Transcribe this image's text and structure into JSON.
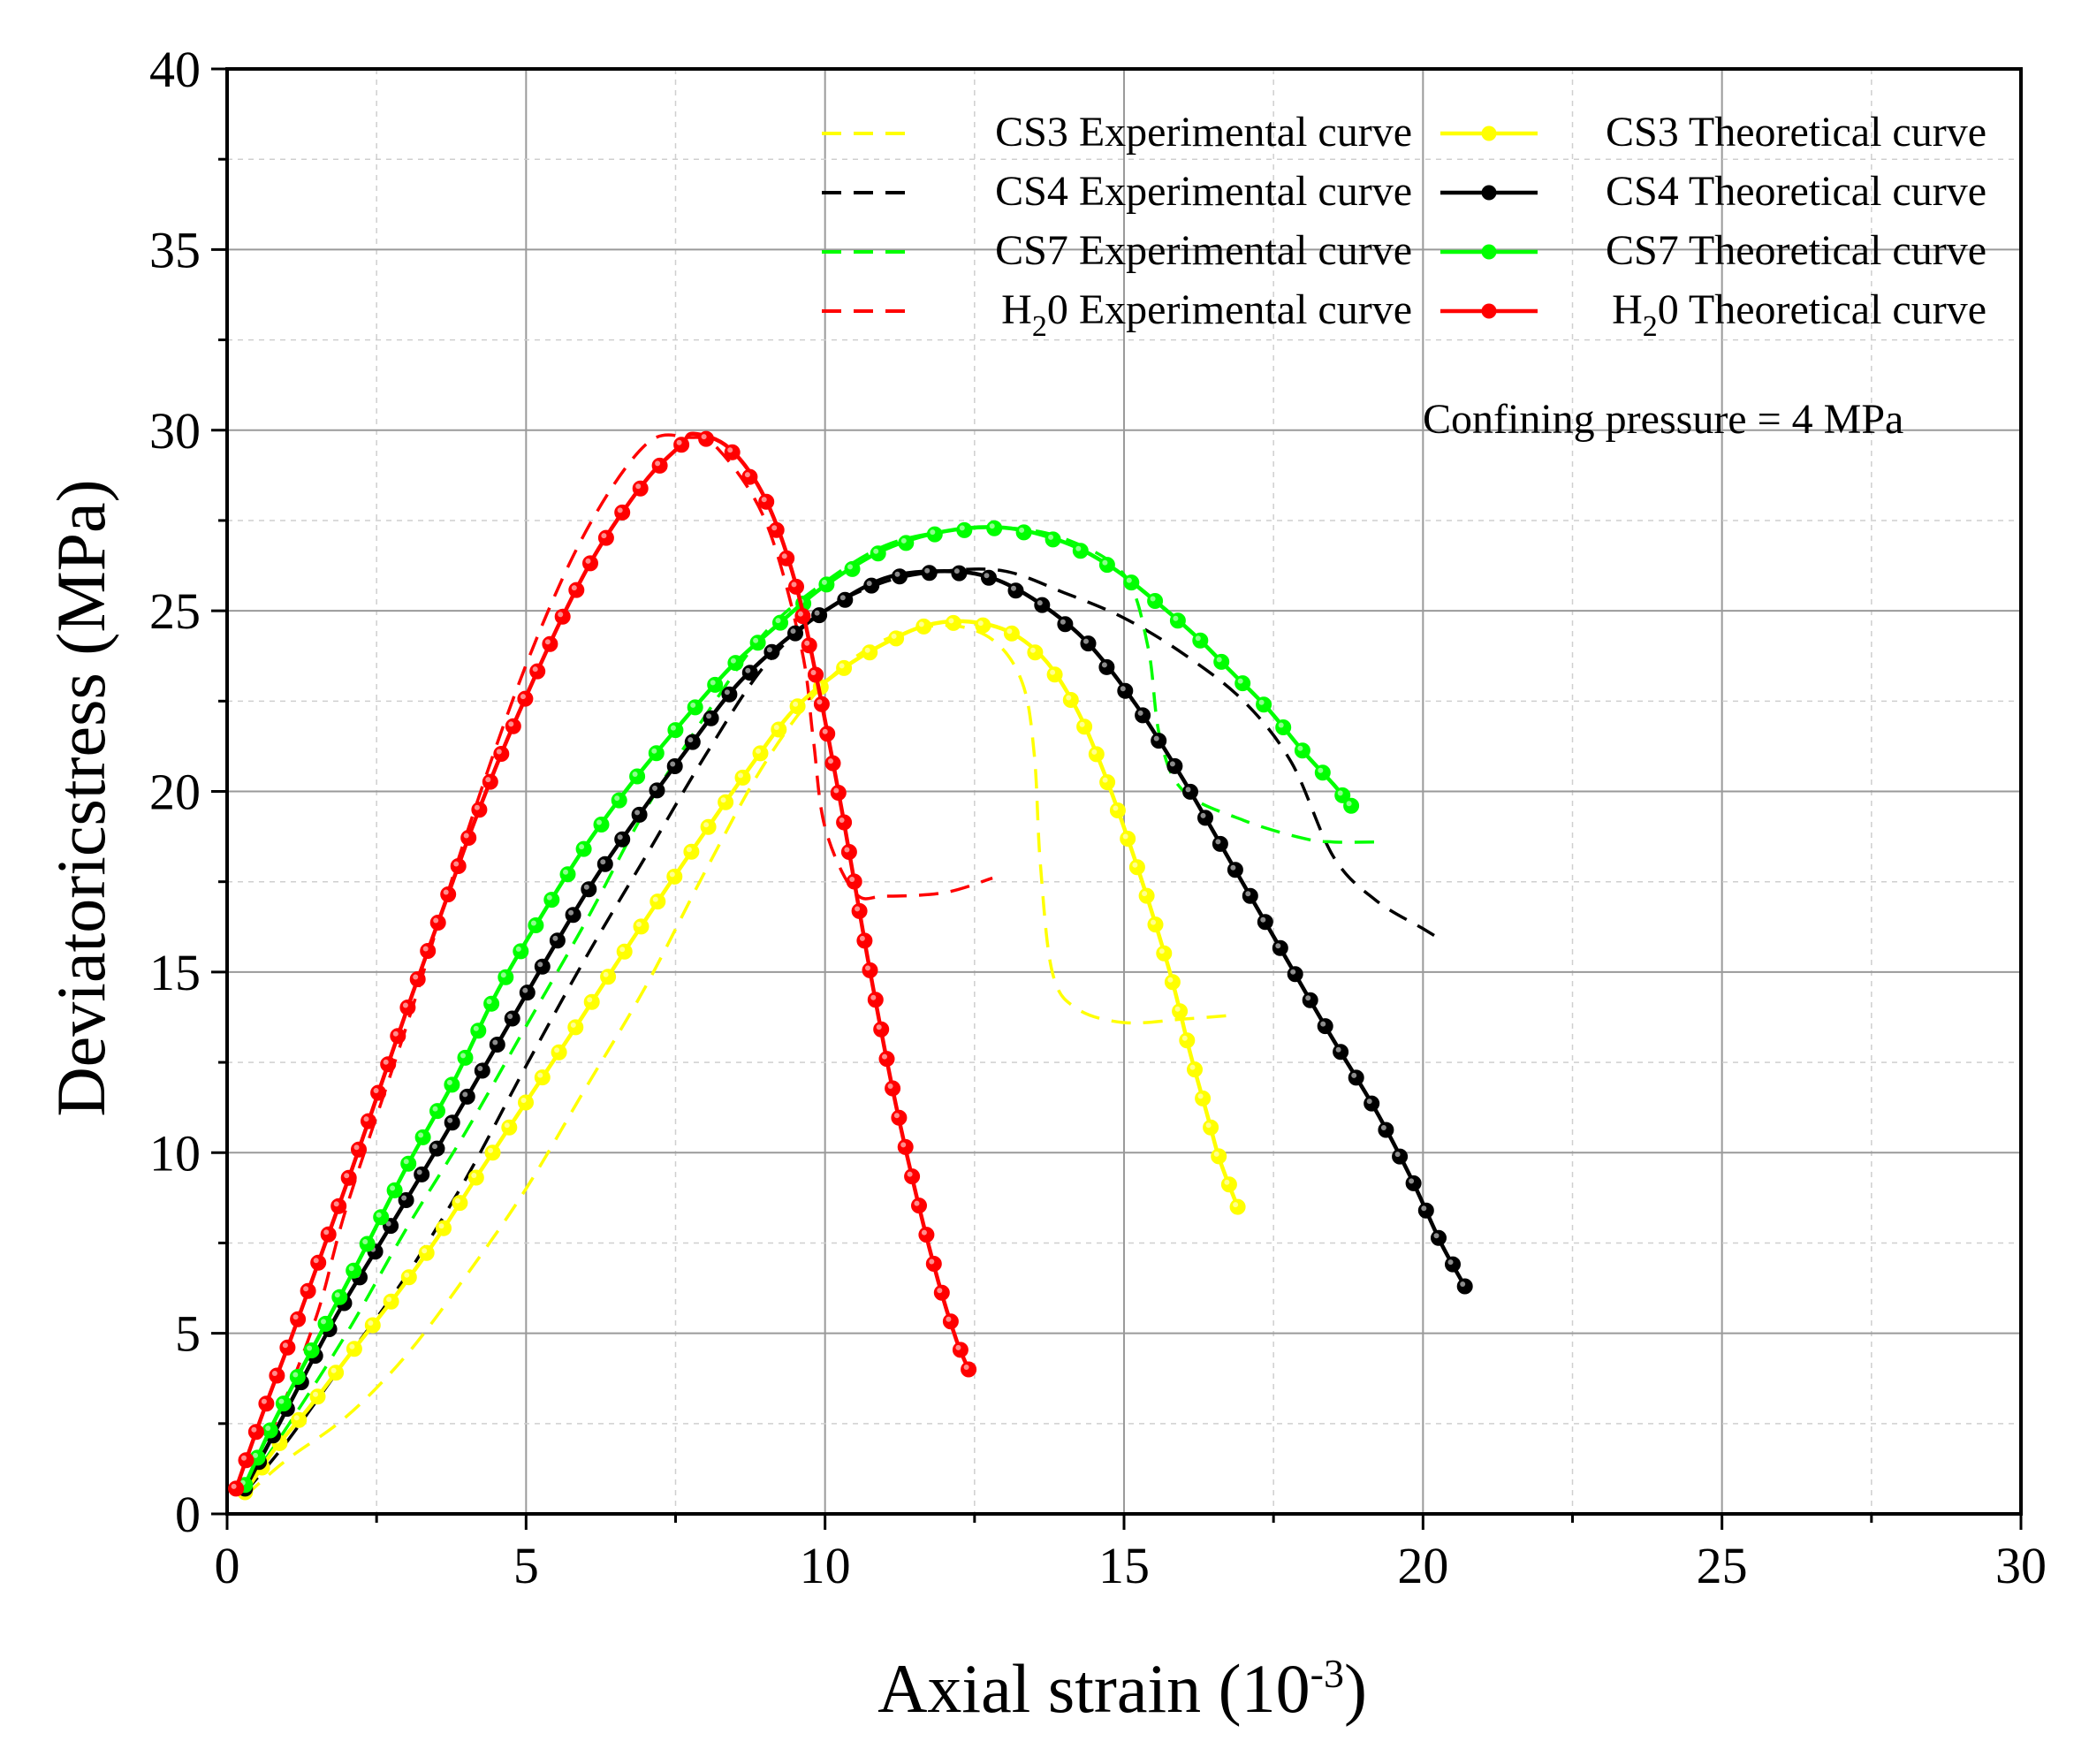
{
  "chart_data": {
    "type": "line",
    "title": "",
    "xlabel": "Axial strain (10",
    "xlabel_sup": "-3",
    "xlabel_close": ")",
    "ylabel": "Deviatoricstress (MPa)",
    "xlim": [
      0,
      30
    ],
    "ylim": [
      0,
      40
    ],
    "xticks": [
      "0",
      "5",
      "10",
      "15",
      "20",
      "25",
      "30"
    ],
    "yticks": [
      "0",
      "5",
      "10",
      "15",
      "20",
      "25",
      "30",
      "35",
      "40"
    ],
    "grid": true,
    "legend_position": "top-right",
    "annotation": "Confining pressure = 4 MPa",
    "series": [
      {
        "name": "CS3 Experimental curve",
        "label_pre": "CS3 Experimental curve",
        "label_sub": "",
        "label_post": "",
        "kind": "experimental",
        "color": "#FFFF00",
        "points": [
          [
            0.3,
            0.5
          ],
          [
            1,
            1.5
          ],
          [
            2,
            2.7
          ],
          [
            3,
            4.4
          ],
          [
            4,
            6.6
          ],
          [
            5,
            9.0
          ],
          [
            6,
            11.8
          ],
          [
            7,
            14.6
          ],
          [
            8,
            17.8
          ],
          [
            9,
            20.8
          ],
          [
            10,
            23.0
          ],
          [
            11,
            24.2
          ],
          [
            12,
            24.6
          ],
          [
            12.8,
            24.2
          ],
          [
            13.3,
            23.0
          ],
          [
            13.5,
            21.0
          ],
          [
            13.6,
            18.0
          ],
          [
            13.8,
            15.0
          ],
          [
            14.2,
            14.0
          ],
          [
            15,
            13.6
          ],
          [
            16,
            13.7
          ],
          [
            16.8,
            13.8
          ]
        ]
      },
      {
        "name": "CS4 Experimental curve",
        "label_pre": "CS4 Experimental curve",
        "label_sub": "",
        "label_post": "",
        "kind": "experimental",
        "color": "#000000",
        "points": [
          [
            0.3,
            0.6
          ],
          [
            1,
            2.0
          ],
          [
            2,
            4.3
          ],
          [
            3,
            6.6
          ],
          [
            4,
            9.3
          ],
          [
            5,
            12.4
          ],
          [
            6,
            15.4
          ],
          [
            7,
            18.2
          ],
          [
            8,
            21.0
          ],
          [
            9,
            23.5
          ],
          [
            10,
            25.0
          ],
          [
            11,
            25.8
          ],
          [
            12,
            26.1
          ],
          [
            13,
            26.1
          ],
          [
            14,
            25.5
          ],
          [
            15,
            24.8
          ],
          [
            16,
            23.8
          ],
          [
            17,
            22.5
          ],
          [
            17.8,
            20.8
          ],
          [
            18.5,
            18.2
          ],
          [
            19.2,
            17.0
          ],
          [
            20,
            16.2
          ],
          [
            20.3,
            15.9
          ]
        ]
      },
      {
        "name": "CS7 Experimental curve",
        "label_pre": "CS7 Experimental curve",
        "label_sub": "",
        "label_post": "",
        "kind": "experimental",
        "color": "#00FF00",
        "points": [
          [
            0.3,
            0.7
          ],
          [
            1,
            2.4
          ],
          [
            2,
            5.0
          ],
          [
            3,
            7.9
          ],
          [
            4,
            10.6
          ],
          [
            5,
            13.5
          ],
          [
            6,
            16.4
          ],
          [
            7,
            19.5
          ],
          [
            8,
            22.1
          ],
          [
            9,
            24.4
          ],
          [
            10,
            25.8
          ],
          [
            11,
            26.8
          ],
          [
            12,
            27.2
          ],
          [
            13,
            27.3
          ],
          [
            14,
            27.0
          ],
          [
            15,
            26.0
          ],
          [
            15.4,
            24.0
          ],
          [
            15.6,
            21.5
          ],
          [
            16,
            20.0
          ],
          [
            17,
            19.2
          ],
          [
            18,
            18.7
          ],
          [
            18.5,
            18.6
          ],
          [
            19.2,
            18.6
          ]
        ]
      },
      {
        "name": "H20 Experimental curve",
        "label_pre": "H",
        "label_sub": "2",
        "label_post": "0 Experimental curve",
        "kind": "experimental",
        "color": "#FF0000",
        "points": [
          [
            0.2,
            0.5
          ],
          [
            0.8,
            2.5
          ],
          [
            1.5,
            5.5
          ],
          [
            2,
            8.5
          ],
          [
            3,
            13.5
          ],
          [
            4,
            18.8
          ],
          [
            5,
            23.5
          ],
          [
            6,
            27.2
          ],
          [
            7,
            29.6
          ],
          [
            7.7,
            29.8
          ],
          [
            8.2,
            29.5
          ],
          [
            9,
            27.5
          ],
          [
            9.6,
            24.0
          ],
          [
            9.8,
            21.5
          ],
          [
            10,
            19.0
          ],
          [
            10.5,
            17.2
          ],
          [
            11,
            17.1
          ],
          [
            12,
            17.2
          ],
          [
            12.8,
            17.6
          ]
        ]
      },
      {
        "name": "CS3 Theoretical curve",
        "label_pre": "CS3 Theoretical curve",
        "label_sub": "",
        "label_post": "",
        "kind": "theoretical",
        "color": "#FFFF00",
        "points": [
          [
            0.3,
            0.6
          ],
          [
            0.8,
            1.8
          ],
          [
            1.4,
            3.0
          ],
          [
            2,
            4.3
          ],
          [
            2.8,
            6.0
          ],
          [
            3.5,
            7.6
          ],
          [
            4.2,
            9.4
          ],
          [
            5,
            11.4
          ],
          [
            5.8,
            13.4
          ],
          [
            6.5,
            15.2
          ],
          [
            7.3,
            17.2
          ],
          [
            8,
            18.9
          ],
          [
            8.8,
            20.8
          ],
          [
            9.5,
            22.3
          ],
          [
            10.3,
            23.4
          ],
          [
            11,
            24.1
          ],
          [
            11.7,
            24.6
          ],
          [
            12.4,
            24.7
          ],
          [
            13.1,
            24.4
          ],
          [
            13.7,
            23.6
          ],
          [
            14.2,
            22.3
          ],
          [
            14.6,
            20.8
          ],
          [
            15,
            19.0
          ],
          [
            15.4,
            17.0
          ],
          [
            15.8,
            14.8
          ],
          [
            16.1,
            12.8
          ],
          [
            16.4,
            11.0
          ],
          [
            16.6,
            9.8
          ],
          [
            16.9,
            8.5
          ]
        ]
      },
      {
        "name": "CS4 Theoretical curve",
        "label_pre": "CS4 Theoretical curve",
        "label_sub": "",
        "label_post": "",
        "kind": "theoretical",
        "color": "#000000",
        "points": [
          [
            0.3,
            0.7
          ],
          [
            1,
            2.9
          ],
          [
            1.8,
            5.4
          ],
          [
            2.6,
            7.6
          ],
          [
            3.4,
            9.8
          ],
          [
            4,
            11.5
          ],
          [
            4.8,
            13.8
          ],
          [
            5.5,
            15.8
          ],
          [
            6.2,
            17.7
          ],
          [
            7,
            19.6
          ],
          [
            7.8,
            21.4
          ],
          [
            8.5,
            22.9
          ],
          [
            9.2,
            24.0
          ],
          [
            10,
            25.0
          ],
          [
            11,
            25.9
          ],
          [
            12,
            26.1
          ],
          [
            12.8,
            25.9
          ],
          [
            13.6,
            25.2
          ],
          [
            14.4,
            24.1
          ],
          [
            15.2,
            22.4
          ],
          [
            16,
            20.3
          ],
          [
            16.8,
            18.0
          ],
          [
            17.6,
            15.7
          ],
          [
            18.4,
            13.4
          ],
          [
            19.2,
            11.2
          ],
          [
            19.8,
            9.3
          ],
          [
            20.3,
            7.5
          ],
          [
            20.7,
            6.3
          ]
        ]
      },
      {
        "name": "CS7 Theoretical curve",
        "label_pre": "CS7 Theoretical curve",
        "label_sub": "",
        "label_post": "",
        "kind": "theoretical",
        "color": "#00FF00",
        "points": [
          [
            0.3,
            0.8
          ],
          [
            0.8,
            2.6
          ],
          [
            1.5,
            4.8
          ],
          [
            2.2,
            7.0
          ],
          [
            3,
            9.6
          ],
          [
            3.8,
            12.0
          ],
          [
            4.5,
            14.4
          ],
          [
            5.2,
            16.4
          ],
          [
            6,
            18.5
          ],
          [
            6.8,
            20.3
          ],
          [
            7.6,
            21.9
          ],
          [
            8.4,
            23.4
          ],
          [
            9.2,
            24.6
          ],
          [
            10,
            25.7
          ],
          [
            11,
            26.7
          ],
          [
            12,
            27.2
          ],
          [
            13,
            27.3
          ],
          [
            14,
            26.9
          ],
          [
            14.8,
            26.2
          ],
          [
            15.5,
            25.3
          ],
          [
            16.2,
            24.3
          ],
          [
            16.8,
            23.3
          ],
          [
            17.4,
            22.3
          ],
          [
            18,
            21.1
          ],
          [
            18.5,
            20.2
          ],
          [
            18.8,
            19.6
          ]
        ]
      },
      {
        "name": "H20 Theoretical curve",
        "label_pre": "H",
        "label_sub": "2",
        "label_post": "0 Theoretical curve",
        "kind": "theoretical",
        "color": "#FF0000",
        "points": [
          [
            0.15,
            0.7
          ],
          [
            0.6,
            2.8
          ],
          [
            1.1,
            5.0
          ],
          [
            1.6,
            7.3
          ],
          [
            2.1,
            9.6
          ],
          [
            2.6,
            12.0
          ],
          [
            3.1,
            14.4
          ],
          [
            3.6,
            16.7
          ],
          [
            4.1,
            19.0
          ],
          [
            4.6,
            21.1
          ],
          [
            5.1,
            23.0
          ],
          [
            5.6,
            24.8
          ],
          [
            6.1,
            26.4
          ],
          [
            6.6,
            27.7
          ],
          [
            7.1,
            28.8
          ],
          [
            7.6,
            29.6
          ],
          [
            7.8,
            29.9
          ],
          [
            8.4,
            29.5
          ],
          [
            9,
            28.1
          ],
          [
            9.5,
            25.8
          ],
          [
            9.9,
            22.8
          ],
          [
            10.3,
            19.3
          ],
          [
            10.7,
            15.5
          ],
          [
            11.1,
            12.0
          ],
          [
            11.5,
            9.0
          ],
          [
            11.9,
            6.4
          ],
          [
            12.2,
            4.8
          ],
          [
            12.4,
            4.0
          ]
        ]
      }
    ]
  }
}
